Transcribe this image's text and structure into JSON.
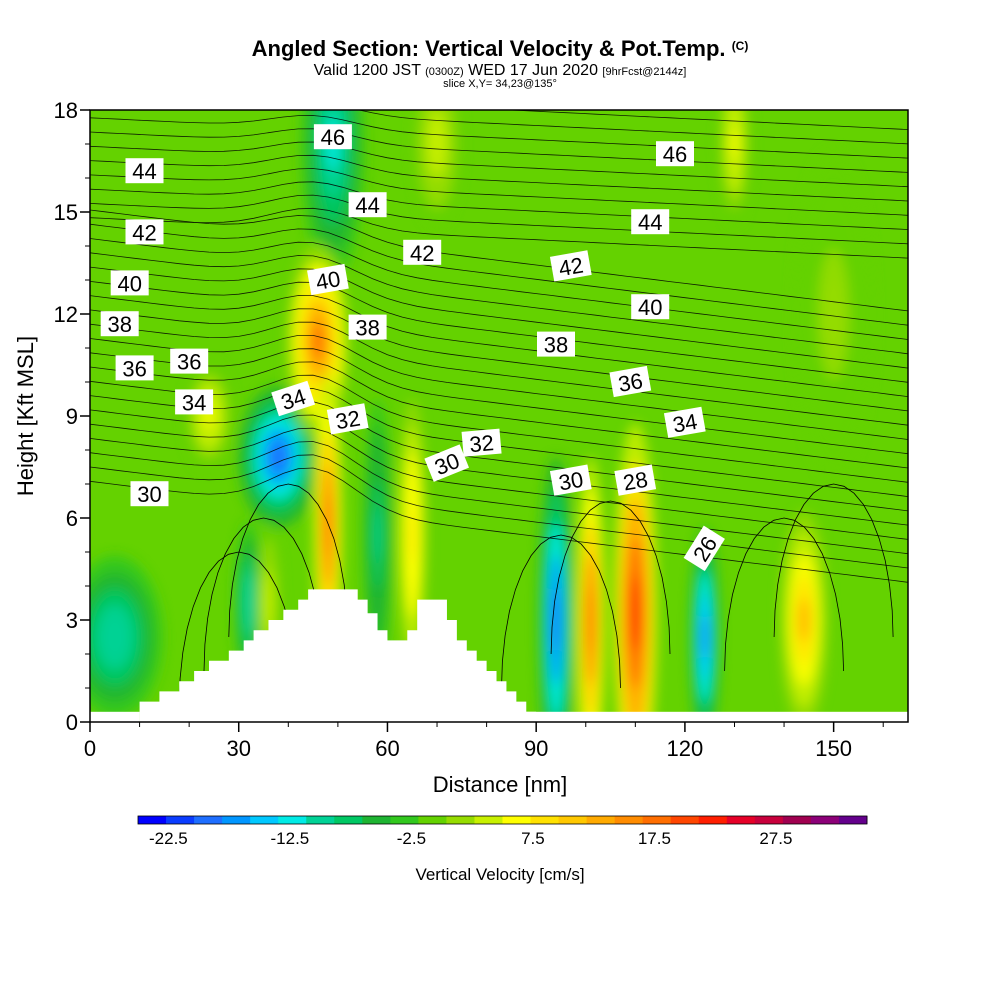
{
  "header": {
    "title": "Angled Section: Vertical Velocity & Pot.Temp.",
    "title_suffix": "(C)",
    "valid_prefix": "Valid 1200 JST",
    "valid_utc": "(0300Z)",
    "valid_date": "WED 17 Jun 2020",
    "valid_fcst": "[9hrFcst@2144z]",
    "slice": "slice X,Y= 34,23@135°"
  },
  "chart_data": {
    "type": "heatmap",
    "xlabel": "Distance [nm]",
    "ylabel": "Height [Kft MSL]",
    "xlim": [
      0,
      165
    ],
    "ylim": [
      0,
      18
    ],
    "x_ticks": [
      0,
      30,
      60,
      90,
      120,
      150
    ],
    "y_ticks": [
      0,
      3,
      6,
      9,
      12,
      15,
      18
    ],
    "colorbar": {
      "label": "Vertical Velocity [cm/s]",
      "tick_labels": [
        "-22.5",
        "-12.5",
        "-2.5",
        "7.5",
        "17.5",
        "27.5"
      ],
      "tick_values": [
        -22.5,
        -12.5,
        -2.5,
        7.5,
        17.5,
        27.5
      ],
      "min": -25,
      "max": 35,
      "step": 2.5,
      "colors": [
        "#0000ff",
        "#0a3cff",
        "#1e6eff",
        "#0096ff",
        "#00c8ff",
        "#00ebe6",
        "#00d296",
        "#00c864",
        "#1eb432",
        "#32c81e",
        "#64d200",
        "#96dc00",
        "#c8f000",
        "#ffff00",
        "#ffe100",
        "#ffc800",
        "#ffaa00",
        "#ff8c00",
        "#ff6e00",
        "#ff4600",
        "#ff1e00",
        "#e60028",
        "#c8003c",
        "#a00050",
        "#8c0078",
        "#64008c"
      ]
    },
    "terrain_top_kft": [
      [
        10,
        0.6
      ],
      [
        14,
        0.9
      ],
      [
        18,
        1.2
      ],
      [
        21,
        1.5
      ],
      [
        24,
        1.8
      ],
      [
        28,
        2.1
      ],
      [
        31,
        2.4
      ],
      [
        33,
        2.7
      ],
      [
        36,
        3.0
      ],
      [
        39,
        3.3
      ],
      [
        42,
        3.6
      ],
      [
        44,
        3.9
      ],
      [
        52,
        3.9
      ],
      [
        54,
        3.6
      ],
      [
        56,
        3.2
      ],
      [
        58,
        2.7
      ],
      [
        60,
        2.4
      ],
      [
        62,
        2.4
      ],
      [
        64,
        2.7
      ],
      [
        66,
        3.6
      ],
      [
        70,
        3.6
      ],
      [
        72,
        3.0
      ],
      [
        74,
        2.4
      ],
      [
        76,
        2.1
      ],
      [
        78,
        1.8
      ],
      [
        80,
        1.5
      ],
      [
        82,
        1.2
      ],
      [
        84,
        0.9
      ],
      [
        86,
        0.6
      ],
      [
        88,
        0.3
      ]
    ],
    "velocity_cores": [
      {
        "x": 38,
        "y": 7.8,
        "rx": 5,
        "ry": 1.3,
        "value": -20
      },
      {
        "x": 49,
        "y": 17,
        "rx": 4,
        "ry": 2.5,
        "value": -12
      },
      {
        "x": 5,
        "y": 2.5,
        "rx": 6,
        "ry": 1.5,
        "value": -10
      },
      {
        "x": 32,
        "y": 3.5,
        "rx": 1.8,
        "ry": 1.5,
        "value": -10
      },
      {
        "x": 36,
        "y": 3.5,
        "rx": 1.5,
        "ry": 1.5,
        "value": 7
      },
      {
        "x": 46,
        "y": 11.2,
        "rx": 4,
        "ry": 1.8,
        "value": 20
      },
      {
        "x": 48,
        "y": 5.8,
        "rx": 1.8,
        "ry": 2.8,
        "value": 22
      },
      {
        "x": 58,
        "y": 5.5,
        "rx": 1.8,
        "ry": 2.5,
        "value": -8
      },
      {
        "x": 65,
        "y": 5.5,
        "rx": 1.8,
        "ry": 2.5,
        "value": 12
      },
      {
        "x": 94,
        "y": 3,
        "rx": 2.2,
        "ry": 3,
        "value": -20
      },
      {
        "x": 101,
        "y": 3,
        "rx": 1.8,
        "ry": 3,
        "value": 22
      },
      {
        "x": 110,
        "y": 3.2,
        "rx": 2.8,
        "ry": 3.5,
        "value": 25
      },
      {
        "x": 124,
        "y": 2.5,
        "rx": 1.8,
        "ry": 2,
        "value": -18
      },
      {
        "x": 144,
        "y": 3,
        "rx": 3,
        "ry": 2,
        "value": 15
      },
      {
        "x": 130,
        "y": 17,
        "rx": 2,
        "ry": 1.5,
        "value": 8
      },
      {
        "x": 70,
        "y": 17,
        "rx": 3,
        "ry": 1.5,
        "value": 6
      },
      {
        "x": 24,
        "y": 9,
        "rx": 3,
        "ry": 1,
        "value": 8
      },
      {
        "x": 150,
        "y": 12,
        "rx": 5,
        "ry": 3,
        "value": 3
      }
    ],
    "isentrope_labels": [
      {
        "text": "46",
        "x": 49,
        "y": 17.2,
        "angle": 0
      },
      {
        "text": "46",
        "x": 118,
        "y": 16.7,
        "angle": 0
      },
      {
        "text": "44",
        "x": 11,
        "y": 16.2,
        "angle": 0
      },
      {
        "text": "44",
        "x": 56,
        "y": 15.2,
        "angle": 0
      },
      {
        "text": "44",
        "x": 113,
        "y": 14.7,
        "angle": 0
      },
      {
        "text": "42",
        "x": 11,
        "y": 14.4,
        "angle": 0
      },
      {
        "text": "42",
        "x": 67,
        "y": 13.8,
        "angle": 0
      },
      {
        "text": "42",
        "x": 97,
        "y": 13.4,
        "angle": -10
      },
      {
        "text": "40",
        "x": 8,
        "y": 12.9,
        "angle": 0
      },
      {
        "text": "40",
        "x": 48,
        "y": 13.0,
        "angle": -10
      },
      {
        "text": "40",
        "x": 113,
        "y": 12.2,
        "angle": 0
      },
      {
        "text": "38",
        "x": 6,
        "y": 11.7,
        "angle": 0
      },
      {
        "text": "38",
        "x": 56,
        "y": 11.6,
        "angle": 0
      },
      {
        "text": "38",
        "x": 94,
        "y": 11.1,
        "angle": 0
      },
      {
        "text": "36",
        "x": 9,
        "y": 10.4,
        "angle": 0
      },
      {
        "text": "36",
        "x": 20,
        "y": 10.6,
        "angle": 0
      },
      {
        "text": "36",
        "x": 109,
        "y": 10.0,
        "angle": -10
      },
      {
        "text": "34",
        "x": 21,
        "y": 9.4,
        "angle": 0
      },
      {
        "text": "34",
        "x": 41,
        "y": 9.5,
        "angle": -18
      },
      {
        "text": "34",
        "x": 120,
        "y": 8.8,
        "angle": -10
      },
      {
        "text": "32",
        "x": 52,
        "y": 8.9,
        "angle": -10
      },
      {
        "text": "32",
        "x": 79,
        "y": 8.2,
        "angle": -5
      },
      {
        "text": "30",
        "x": 12,
        "y": 6.7,
        "angle": 0
      },
      {
        "text": "30",
        "x": 72,
        "y": 7.6,
        "angle": -22
      },
      {
        "text": "30",
        "x": 97,
        "y": 7.1,
        "angle": -10
      },
      {
        "text": "28",
        "x": 110,
        "y": 7.1,
        "angle": -10
      },
      {
        "text": "26",
        "x": 124,
        "y": 5.1,
        "angle": -58
      }
    ]
  }
}
